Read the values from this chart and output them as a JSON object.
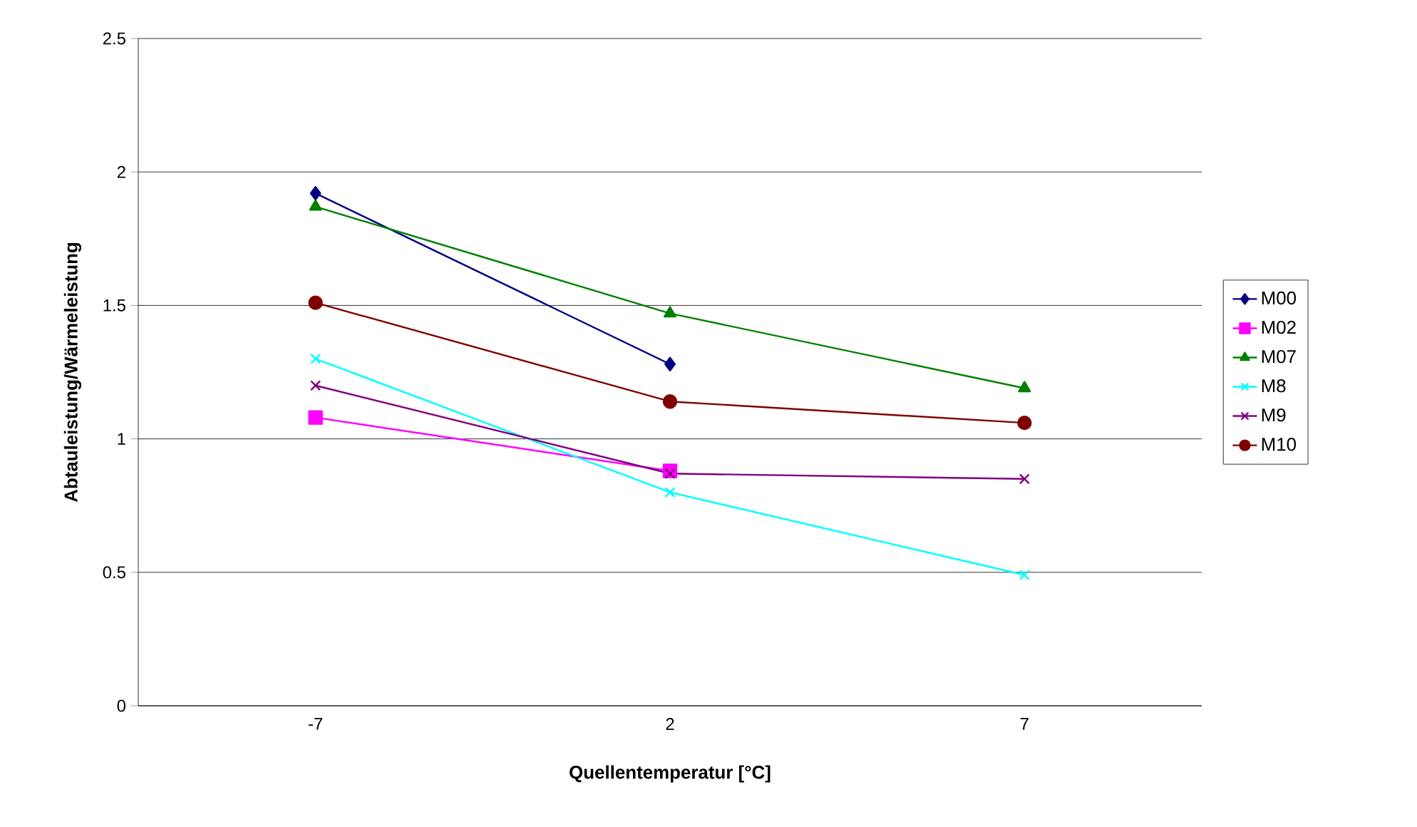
{
  "chart_data": {
    "type": "line",
    "xlabel": "Quellentemperatur [°C]",
    "ylabel": "Abtauleistung/Wärmeleistung",
    "categories": [
      "-7",
      "2",
      "7"
    ],
    "series": [
      {
        "name": "M00",
        "color": "#000080",
        "marker": "diamond",
        "values": [
          1.92,
          1.28,
          null
        ]
      },
      {
        "name": "M02",
        "color": "#ff00ff",
        "marker": "square",
        "values": [
          1.08,
          0.88,
          null
        ]
      },
      {
        "name": "M07",
        "color": "#008000",
        "marker": "triangle",
        "values": [
          1.87,
          1.47,
          1.19
        ]
      },
      {
        "name": "M8",
        "color": "#00ffff",
        "marker": "cross",
        "values": [
          1.3,
          0.8,
          0.49
        ]
      },
      {
        "name": "M9",
        "color": "#800080",
        "marker": "cross",
        "values": [
          1.2,
          0.87,
          0.85
        ]
      },
      {
        "name": "M10",
        "color": "#800000",
        "marker": "circle",
        "values": [
          1.51,
          1.14,
          1.06
        ]
      }
    ],
    "ylim": [
      0,
      2.5
    ],
    "yticks": [
      0,
      0.5,
      1,
      1.5,
      2,
      2.5
    ],
    "grid": "y",
    "legend": "right",
    "line_style": "solid"
  }
}
